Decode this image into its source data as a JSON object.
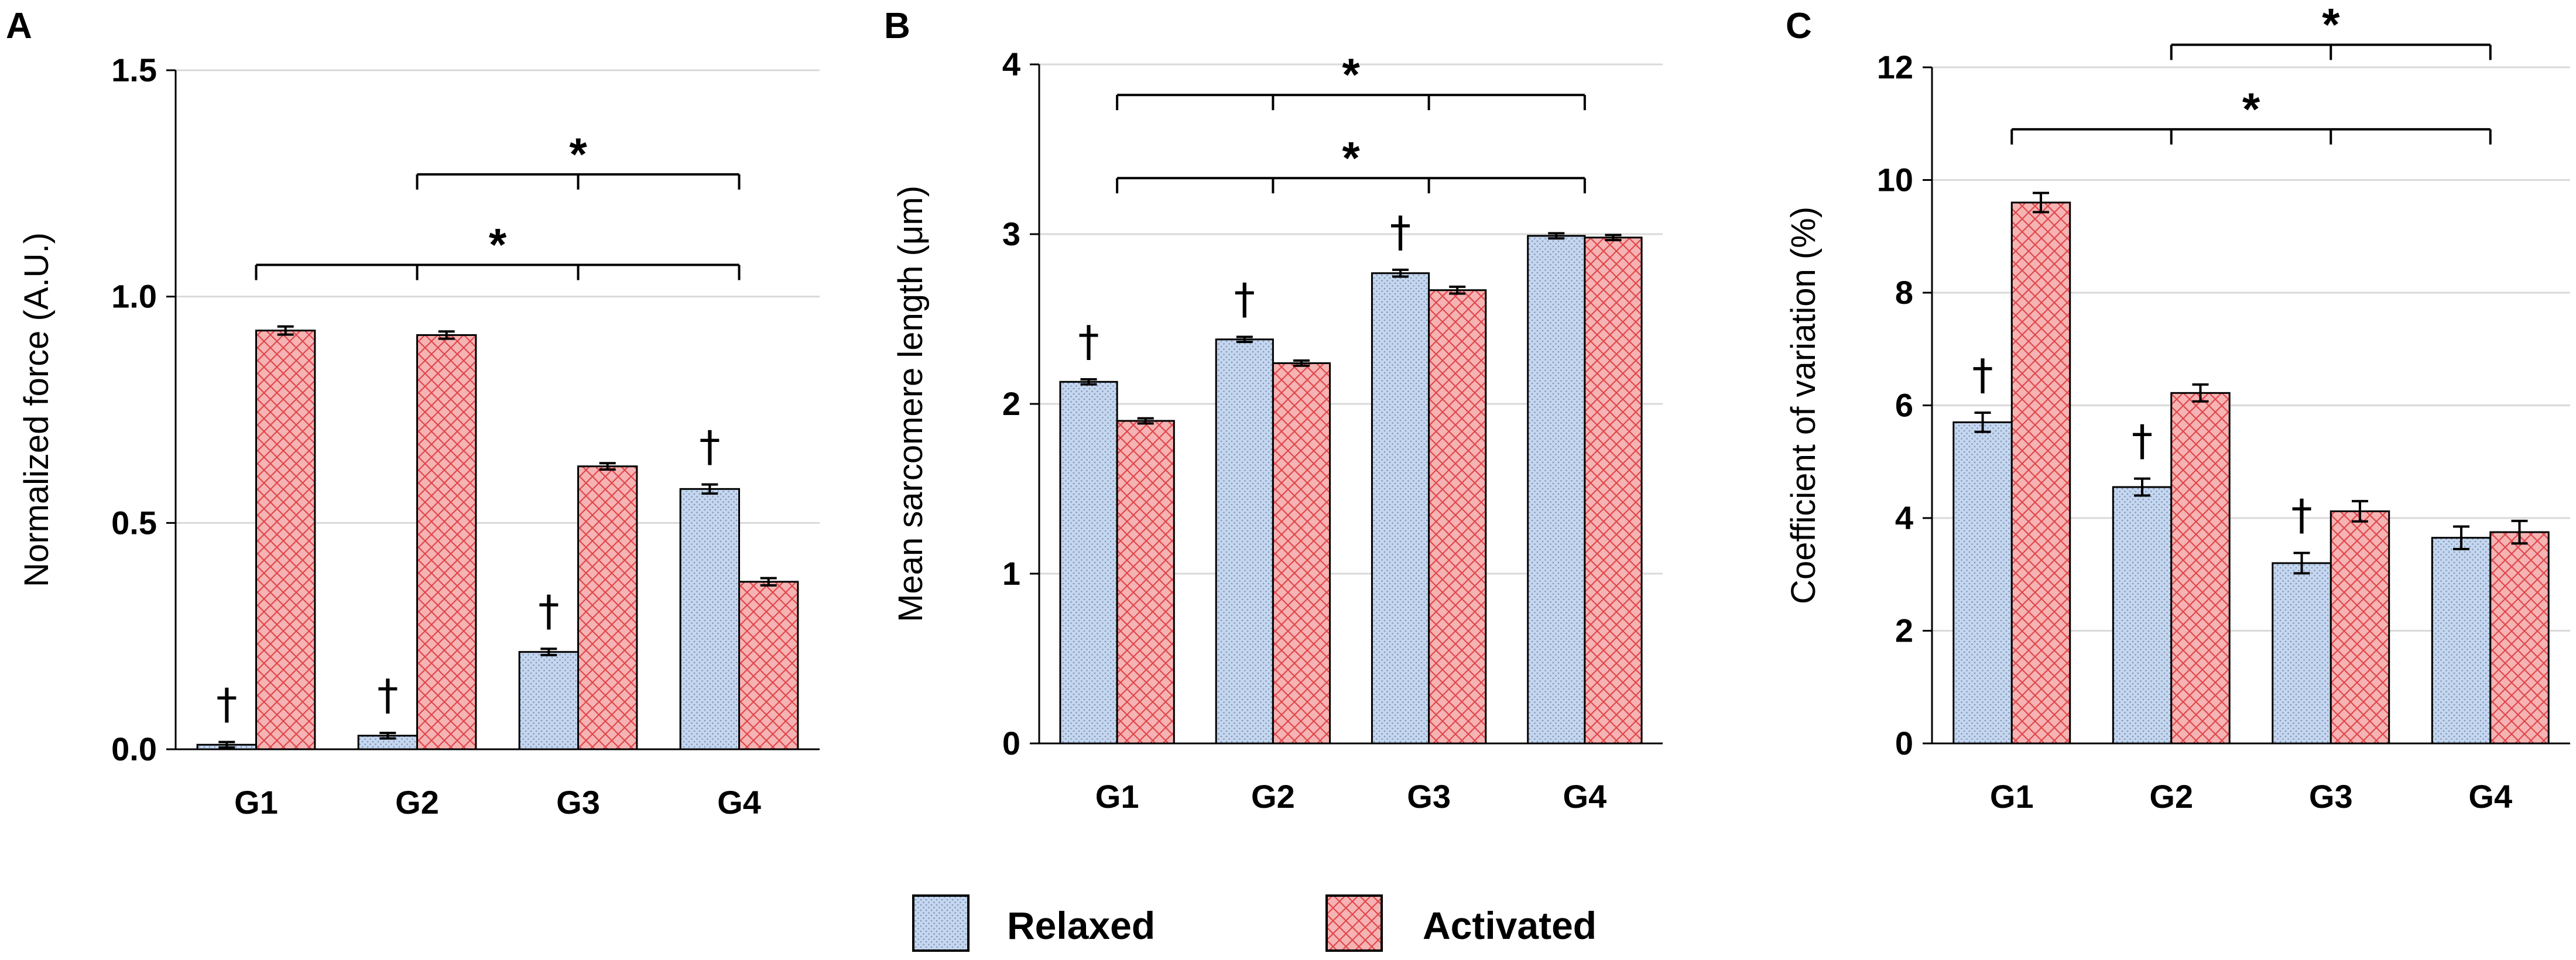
{
  "colors": {
    "relaxed": "#c5d7ef",
    "activated": "#f6b3b3",
    "relaxed_dots": "#7f94b8",
    "activated_hatch": "#e0474c",
    "grid": "#d9d9d9"
  },
  "legend": {
    "relaxed": "Relaxed",
    "activated": "Activated"
  },
  "chart_data": [
    {
      "panel": "A",
      "type": "bar",
      "ylabel": "Normalized force (A.U.)",
      "ylim": [
        0,
        1.5
      ],
      "yticks": [
        "0.0",
        "0.5",
        "1.0",
        "1.5"
      ],
      "categories": [
        "G1",
        "G2",
        "G3",
        "G4"
      ],
      "series": [
        {
          "name": "Relaxed",
          "values": [
            0.01,
            0.03,
            0.215,
            0.575
          ],
          "errors": [
            0.006,
            0.006,
            0.007,
            0.01
          ]
        },
        {
          "name": "Activated",
          "values": [
            0.925,
            0.915,
            0.625,
            0.37
          ],
          "errors": [
            0.009,
            0.008,
            0.007,
            0.008
          ]
        }
      ],
      "dagger_groups": [
        0,
        1,
        2,
        3
      ],
      "dagger": "†",
      "star": "*",
      "brackets": [
        {
          "from": "G1",
          "to": [
            "G2",
            "G3",
            "G4"
          ],
          "y": 1.07
        },
        {
          "from": "G2",
          "to": [
            "G3",
            "G4"
          ],
          "y": 1.27
        }
      ]
    },
    {
      "panel": "B",
      "type": "bar",
      "ylabel": "Mean sarcomere length (μm)",
      "ylim": [
        0,
        4
      ],
      "yticks": [
        "0",
        "1",
        "2",
        "3",
        "4"
      ],
      "categories": [
        "G1",
        "G2",
        "G3",
        "G4"
      ],
      "series": [
        {
          "name": "Relaxed",
          "values": [
            2.13,
            2.38,
            2.77,
            2.99
          ],
          "errors": [
            0.015,
            0.015,
            0.02,
            0.015
          ]
        },
        {
          "name": "Activated",
          "values": [
            1.9,
            2.24,
            2.67,
            2.98
          ],
          "errors": [
            0.015,
            0.015,
            0.02,
            0.015
          ]
        }
      ],
      "dagger_groups": [
        0,
        1,
        2
      ],
      "dagger": "†",
      "star": "*",
      "brackets": [
        {
          "from": "G1",
          "to": [
            "G2",
            "G3",
            "G4"
          ],
          "y": 3.33
        },
        {
          "from": "G1",
          "to": [
            "G2",
            "G3",
            "G4"
          ],
          "y": 3.82
        }
      ]
    },
    {
      "panel": "C",
      "type": "bar",
      "ylabel": "Coefficient of variation (%)",
      "ylim": [
        0,
        12
      ],
      "yticks": [
        "0",
        "2",
        "4",
        "6",
        "8",
        "10",
        "12"
      ],
      "categories": [
        "G1",
        "G2",
        "G3",
        "G4"
      ],
      "series": [
        {
          "name": "Relaxed",
          "values": [
            5.7,
            4.55,
            3.2,
            3.65
          ],
          "errors": [
            0.17,
            0.15,
            0.18,
            0.2
          ]
        },
        {
          "name": "Activated",
          "values": [
            9.6,
            6.22,
            4.12,
            3.75
          ],
          "errors": [
            0.17,
            0.15,
            0.18,
            0.2
          ]
        }
      ],
      "dagger_groups": [
        0,
        1,
        2
      ],
      "dagger": "†",
      "star": "*",
      "brackets": [
        {
          "from": "G1",
          "to": [
            "G2",
            "G3",
            "G4"
          ],
          "y": 10.9
        },
        {
          "from": "G2",
          "to": [
            "G3",
            "G4"
          ],
          "y": 12.4
        }
      ]
    }
  ]
}
